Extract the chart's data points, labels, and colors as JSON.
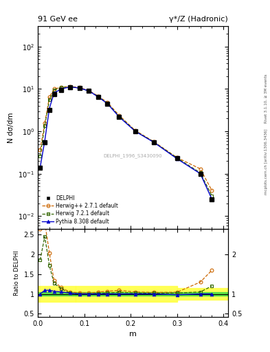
{
  "title_left": "91 GeV ee",
  "title_right": "γ*/Z (Hadronic)",
  "ylabel_main": "N dσ/dm",
  "ylabel_ratio": "Ratio to DELPHI",
  "xlabel": "m",
  "right_label_top": "Rivet 3.1.10, ≥ 3M events",
  "right_label_bot": "mcplots.cern.ch [arXiv:1306.3436]",
  "watermark": "DELPHI_1996_S3430090",
  "delphi_x": [
    0.005,
    0.015,
    0.025,
    0.035,
    0.05,
    0.07,
    0.09,
    0.11,
    0.13,
    0.15,
    0.175,
    0.21,
    0.25,
    0.3,
    0.35,
    0.375
  ],
  "delphi_y": [
    0.14,
    0.55,
    3.2,
    7.5,
    9.5,
    11.0,
    10.5,
    9.0,
    6.5,
    4.5,
    2.2,
    1.0,
    0.55,
    0.23,
    0.1,
    0.025
  ],
  "herwig_x": [
    0.005,
    0.015,
    0.025,
    0.035,
    0.05,
    0.07,
    0.09,
    0.11,
    0.13,
    0.15,
    0.175,
    0.21,
    0.25,
    0.3,
    0.35,
    0.375
  ],
  "herwig_y": [
    0.37,
    1.55,
    6.5,
    10.0,
    11.0,
    11.5,
    10.8,
    9.2,
    6.8,
    4.8,
    2.4,
    1.05,
    0.57,
    0.24,
    0.13,
    0.04
  ],
  "herwig7_x": [
    0.005,
    0.015,
    0.025,
    0.035,
    0.05,
    0.07,
    0.09,
    0.11,
    0.13,
    0.15,
    0.175,
    0.21,
    0.25,
    0.3,
    0.35,
    0.375
  ],
  "herwig7_y": [
    0.26,
    1.35,
    5.5,
    9.5,
    10.8,
    11.2,
    10.5,
    9.0,
    6.6,
    4.6,
    2.3,
    1.02,
    0.56,
    0.235,
    0.105,
    0.03
  ],
  "pythia_x": [
    0.005,
    0.015,
    0.025,
    0.035,
    0.05,
    0.07,
    0.09,
    0.11,
    0.13,
    0.15,
    0.175,
    0.21,
    0.25,
    0.3,
    0.35,
    0.375
  ],
  "pythia_y": [
    0.14,
    0.6,
    3.5,
    8.0,
    10.0,
    11.2,
    10.5,
    9.0,
    6.5,
    4.5,
    2.2,
    1.0,
    0.55,
    0.225,
    0.1,
    0.025
  ],
  "delphi_color": "#000000",
  "herwig_color": "#cc6600",
  "herwig7_color": "#336600",
  "pythia_color": "#0000cc",
  "ylim_main": [
    0.005,
    300
  ],
  "ylim_ratio": [
    0.42,
    2.65
  ],
  "xlim": [
    0.0,
    0.41
  ]
}
